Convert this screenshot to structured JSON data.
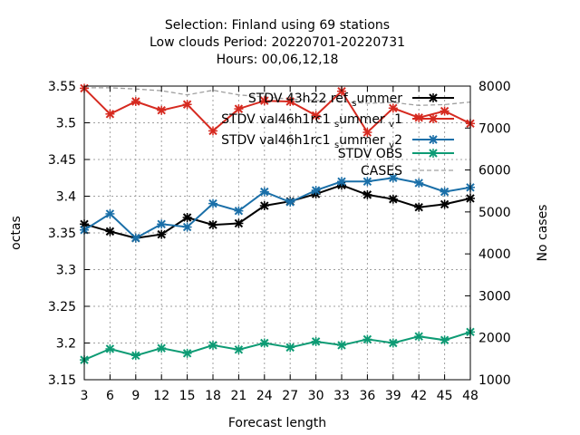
{
  "chart_data": {
    "type": "line",
    "title_lines": [
      "Selection: Finland using    69 stations",
      "Low clouds   Period: 20220701-20220731",
      "Hours:  00,06,12,18"
    ],
    "xlabel": "Forecast length",
    "ylabel": "octas",
    "y2label": "No cases",
    "x": [
      3,
      6,
      9,
      12,
      15,
      18,
      21,
      24,
      27,
      30,
      33,
      36,
      39,
      42,
      45,
      48
    ],
    "xlim": [
      3,
      48
    ],
    "ylim": [
      3.15,
      3.55
    ],
    "y2lim": [
      1000,
      8000
    ],
    "yticks": [
      "3.15",
      "3.2",
      "3.25",
      "3.3",
      "3.35",
      "3.4",
      "3.45",
      "3.5",
      "3.55"
    ],
    "y2ticks": [
      "1000",
      "2000",
      "3000",
      "4000",
      "5000",
      "6000",
      "7000",
      "8000"
    ],
    "grid": true,
    "legend_position": "top-right",
    "series": [
      {
        "name": "STDV 43h22 ref summer",
        "legend_parts": [
          "STDV 43h22 ref",
          "s",
          "ummer"
        ],
        "color": "#000000",
        "marker": "x",
        "axis": "y1",
        "values": [
          3.362,
          3.352,
          3.343,
          3.348,
          3.371,
          3.361,
          3.363,
          3.387,
          3.393,
          3.403,
          3.415,
          3.402,
          3.396,
          3.385,
          3.389,
          3.397
        ]
      },
      {
        "name": "STDV val46h1rc1 summer v1",
        "legend_parts": [
          "STDV val46h1rc1",
          "s",
          "ummer",
          "v",
          "1"
        ],
        "color": "#d62a20",
        "marker": "x",
        "axis": "y1",
        "values": [
          3.547,
          3.512,
          3.529,
          3.517,
          3.525,
          3.489,
          3.519,
          3.53,
          3.529,
          3.51,
          3.543,
          3.487,
          3.52,
          3.507,
          3.516,
          3.499
        ]
      },
      {
        "name": "STDV val46h1rc1 summer v2",
        "legend_parts": [
          "STDV val46h1rc1",
          "s",
          "ummer",
          "v",
          "2"
        ],
        "color": "#1a6fa8",
        "marker": "x",
        "axis": "y1",
        "values": [
          3.354,
          3.376,
          3.343,
          3.362,
          3.358,
          3.39,
          3.38,
          3.406,
          3.392,
          3.408,
          3.42,
          3.42,
          3.425,
          3.418,
          3.406,
          3.412
        ]
      },
      {
        "name": "STDV OBS",
        "legend_parts": [
          "STDV OBS"
        ],
        "color": "#0d9b74",
        "marker": "x",
        "axis": "y1",
        "values": [
          3.177,
          3.192,
          3.183,
          3.193,
          3.186,
          3.197,
          3.191,
          3.2,
          3.194,
          3.202,
          3.197,
          3.205,
          3.2,
          3.209,
          3.204,
          3.215
        ]
      },
      {
        "name": "CASES",
        "legend_parts": [
          "CASES"
        ],
        "color": "#a0a0a0",
        "marker": "none",
        "dashed": true,
        "axis": "y2",
        "values": [
          7960,
          7960,
          7930,
          7890,
          7790,
          7900,
          7790,
          7740,
          7690,
          7660,
          7630,
          7590,
          7610,
          7540,
          7560,
          7620
        ]
      }
    ]
  }
}
